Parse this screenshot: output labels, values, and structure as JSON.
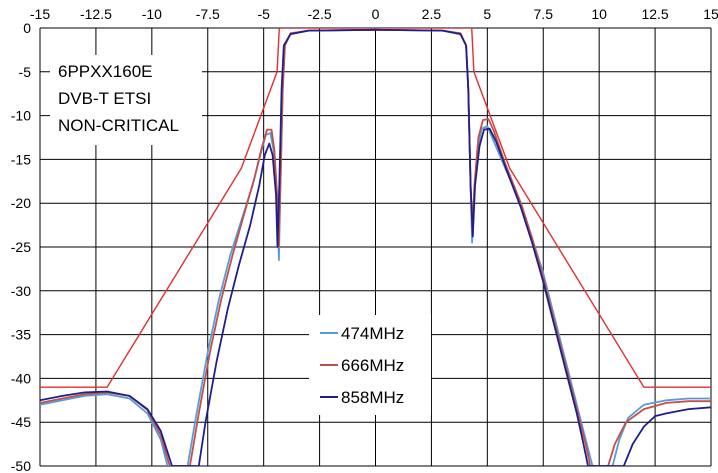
{
  "chart_data": {
    "type": "line",
    "title": "",
    "xlabel": "",
    "ylabel": "",
    "xlim": [
      -15,
      15
    ],
    "ylim": [
      -50,
      0
    ],
    "x_axis_position": "top",
    "xticks": [
      -15,
      -12.5,
      -10,
      -7.5,
      -5,
      -2.5,
      0,
      2.5,
      5,
      7.5,
      10,
      12.5,
      15
    ],
    "xtick_labels": [
      "-15",
      "-12.5",
      "-10",
      "-7.5",
      "-5",
      "-2.5",
      "0",
      "2.5",
      "5",
      "7.5",
      "10",
      "12.5",
      "15"
    ],
    "yticks": [
      0,
      -5,
      -10,
      -15,
      -20,
      -25,
      -30,
      -35,
      -40,
      -45,
      -50
    ],
    "ytick_labels": [
      "0",
      "-5",
      "-10",
      "-15",
      "-20",
      "-25",
      "-30",
      "-35",
      "-40",
      "-45",
      "-50"
    ],
    "grid": true,
    "annotations": [
      "6PPXX160E",
      "DVB-T ETSI",
      "NON-CRITICAL"
    ],
    "legend_position": "bottom-center",
    "series": [
      {
        "name": "474MHz",
        "color": "#5b9bd5",
        "points": [
          [
            -15,
            -43
          ],
          [
            -14,
            -42.5
          ],
          [
            -13,
            -42
          ],
          [
            -12,
            -41.8
          ],
          [
            -11,
            -42.3
          ],
          [
            -10.2,
            -44
          ],
          [
            -9.6,
            -47
          ],
          [
            -9.3,
            -50
          ],
          [
            -8.4,
            -50
          ],
          [
            -8,
            -44
          ],
          [
            -7.5,
            -37
          ],
          [
            -7,
            -31
          ],
          [
            -6.5,
            -26
          ],
          [
            -6,
            -22
          ],
          [
            -5.5,
            -18
          ],
          [
            -5.2,
            -15
          ],
          [
            -4.9,
            -12.2
          ],
          [
            -4.7,
            -12
          ],
          [
            -4.55,
            -14
          ],
          [
            -4.4,
            -20
          ],
          [
            -4.32,
            -26.5
          ],
          [
            -4.25,
            -18
          ],
          [
            -4.15,
            -7
          ],
          [
            -4.05,
            -2
          ],
          [
            -3.8,
            -0.7
          ],
          [
            -3,
            -0.3
          ],
          [
            0,
            -0.2
          ],
          [
            3,
            -0.3
          ],
          [
            3.8,
            -0.7
          ],
          [
            4.05,
            -2
          ],
          [
            4.15,
            -7
          ],
          [
            4.25,
            -18
          ],
          [
            4.32,
            -24.5
          ],
          [
            4.4,
            -20
          ],
          [
            4.55,
            -14
          ],
          [
            4.75,
            -11.5
          ],
          [
            5,
            -11.2
          ],
          [
            5.3,
            -13
          ],
          [
            5.8,
            -16
          ],
          [
            6.5,
            -20
          ],
          [
            7,
            -24
          ],
          [
            7.5,
            -28
          ],
          [
            8,
            -33
          ],
          [
            8.5,
            -38
          ],
          [
            9,
            -43
          ],
          [
            9.4,
            -47
          ],
          [
            9.7,
            -50
          ],
          [
            10.6,
            -50
          ],
          [
            10.9,
            -47
          ],
          [
            11.3,
            -44.5
          ],
          [
            12,
            -43
          ],
          [
            13,
            -42.5
          ],
          [
            14,
            -42.3
          ],
          [
            15,
            -42.3
          ]
        ]
      },
      {
        "name": "666MHz",
        "color": "#c0504d",
        "points": [
          [
            -15,
            -42.8
          ],
          [
            -14,
            -42.3
          ],
          [
            -13,
            -41.8
          ],
          [
            -12,
            -41.6
          ],
          [
            -11,
            -42
          ],
          [
            -10.2,
            -43.6
          ],
          [
            -9.6,
            -46.5
          ],
          [
            -9.2,
            -50
          ],
          [
            -8.3,
            -50
          ],
          [
            -7.9,
            -44
          ],
          [
            -7.4,
            -37
          ],
          [
            -6.9,
            -31
          ],
          [
            -6.4,
            -26
          ],
          [
            -5.9,
            -21.5
          ],
          [
            -5.4,
            -17
          ],
          [
            -5.1,
            -13.8
          ],
          [
            -4.85,
            -11.6
          ],
          [
            -4.65,
            -11.6
          ],
          [
            -4.52,
            -14
          ],
          [
            -4.4,
            -19
          ],
          [
            -4.33,
            -25
          ],
          [
            -4.25,
            -18
          ],
          [
            -4.15,
            -7
          ],
          [
            -4.05,
            -2
          ],
          [
            -3.8,
            -0.6
          ],
          [
            -3,
            -0.3
          ],
          [
            0,
            -0.2
          ],
          [
            3,
            -0.3
          ],
          [
            3.8,
            -0.6
          ],
          [
            4.05,
            -2
          ],
          [
            4.15,
            -7
          ],
          [
            4.25,
            -18
          ],
          [
            4.33,
            -23
          ],
          [
            4.42,
            -18
          ],
          [
            4.6,
            -12.5
          ],
          [
            4.8,
            -10.5
          ],
          [
            5.05,
            -10.4
          ],
          [
            5.3,
            -11.8
          ],
          [
            5.8,
            -15.5
          ],
          [
            6.5,
            -20
          ],
          [
            7,
            -24
          ],
          [
            7.5,
            -28.5
          ],
          [
            8,
            -33.5
          ],
          [
            8.5,
            -38.5
          ],
          [
            9,
            -43.5
          ],
          [
            9.4,
            -47.5
          ],
          [
            9.6,
            -50
          ],
          [
            10.4,
            -50
          ],
          [
            10.7,
            -47.5
          ],
          [
            11.2,
            -45
          ],
          [
            12,
            -43.5
          ],
          [
            13,
            -42.8
          ],
          [
            14,
            -42.6
          ],
          [
            15,
            -42.6
          ]
        ]
      },
      {
        "name": "858MHz",
        "color": "#1f1f8c",
        "points": [
          [
            -15,
            -42.5
          ],
          [
            -14,
            -42
          ],
          [
            -13,
            -41.6
          ],
          [
            -12,
            -41.5
          ],
          [
            -11,
            -42
          ],
          [
            -10.2,
            -43.5
          ],
          [
            -9.6,
            -46
          ],
          [
            -9.1,
            -50
          ],
          [
            -7.9,
            -50
          ],
          [
            -7.6,
            -45
          ],
          [
            -7.1,
            -38
          ],
          [
            -6.6,
            -32
          ],
          [
            -6.1,
            -27
          ],
          [
            -5.6,
            -22.5
          ],
          [
            -5.2,
            -18
          ],
          [
            -4.95,
            -14.5
          ],
          [
            -4.75,
            -13.2
          ],
          [
            -4.6,
            -14.5
          ],
          [
            -4.45,
            -19
          ],
          [
            -4.38,
            -25
          ],
          [
            -4.3,
            -18
          ],
          [
            -4.2,
            -7
          ],
          [
            -4.1,
            -2
          ],
          [
            -3.8,
            -0.7
          ],
          [
            -3,
            -0.3
          ],
          [
            0,
            -0.2
          ],
          [
            3,
            -0.3
          ],
          [
            3.8,
            -0.7
          ],
          [
            4.05,
            -2
          ],
          [
            4.15,
            -7
          ],
          [
            4.25,
            -18
          ],
          [
            4.35,
            -23.8
          ],
          [
            4.45,
            -18
          ],
          [
            4.65,
            -13.5
          ],
          [
            4.85,
            -11.6
          ],
          [
            5.1,
            -11.5
          ],
          [
            5.4,
            -13
          ],
          [
            5.9,
            -16.5
          ],
          [
            6.5,
            -20.5
          ],
          [
            7,
            -24.5
          ],
          [
            7.5,
            -29
          ],
          [
            8,
            -34
          ],
          [
            8.5,
            -39
          ],
          [
            9,
            -44
          ],
          [
            9.3,
            -47.5
          ],
          [
            9.5,
            -50
          ],
          [
            11.1,
            -50
          ],
          [
            11.5,
            -47.5
          ],
          [
            12,
            -45.5
          ],
          [
            12.5,
            -44.3
          ],
          [
            13,
            -44
          ],
          [
            14,
            -43.5
          ],
          [
            15,
            -43.3
          ]
        ]
      },
      {
        "name": "",
        "color": "#e03030",
        "points": [
          [
            -15,
            -41
          ],
          [
            -12,
            -41
          ],
          [
            -6,
            -16
          ],
          [
            -4.4,
            -5
          ],
          [
            -4.3,
            0
          ],
          [
            4.3,
            0
          ],
          [
            4.4,
            -5
          ],
          [
            6,
            -16
          ],
          [
            12,
            -41
          ],
          [
            15,
            -41
          ]
        ]
      }
    ]
  }
}
